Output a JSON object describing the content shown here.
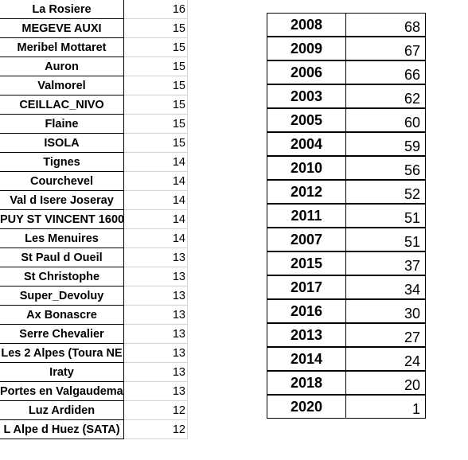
{
  "left_table": {
    "rows": [
      {
        "name": "La Rosiere",
        "value": "16"
      },
      {
        "name": "MEGEVE AUXI",
        "value": "15"
      },
      {
        "name": "Meribel Mottaret",
        "value": "15"
      },
      {
        "name": "Auron",
        "value": "15"
      },
      {
        "name": "Valmorel",
        "value": "15"
      },
      {
        "name": "CEILLAC_NIVO",
        "value": "15"
      },
      {
        "name": "Flaine",
        "value": "15"
      },
      {
        "name": "ISOLA",
        "value": "15"
      },
      {
        "name": "Tignes",
        "value": "14"
      },
      {
        "name": "Courchevel",
        "value": "14"
      },
      {
        "name": "Val d Isere Joseray",
        "value": "14"
      },
      {
        "name": "PUY ST VINCENT 1600",
        "value": "14"
      },
      {
        "name": "Les Menuires",
        "value": "14"
      },
      {
        "name": "St Paul d Oueil",
        "value": "13"
      },
      {
        "name": "St Christophe",
        "value": "13"
      },
      {
        "name": "Super_Devoluy",
        "value": "13"
      },
      {
        "name": "Ax Bonascre",
        "value": "13"
      },
      {
        "name": "Serre Chevalier",
        "value": "13"
      },
      {
        "name": "Les 2 Alpes (Toura NE",
        "value": "13"
      },
      {
        "name": "Iraty",
        "value": "13"
      },
      {
        "name": "Portes en Valgaudemar",
        "value": "13"
      },
      {
        "name": "Luz Ardiden",
        "value": "12"
      },
      {
        "name": "L Alpe d Huez (SATA)",
        "value": "12"
      }
    ]
  },
  "right_table": {
    "rows": [
      {
        "year": "2008",
        "value": "68"
      },
      {
        "year": "2009",
        "value": "67"
      },
      {
        "year": "2006",
        "value": "66"
      },
      {
        "year": "2003",
        "value": "62"
      },
      {
        "year": "2005",
        "value": "60"
      },
      {
        "year": "2004",
        "value": "59"
      },
      {
        "year": "2010",
        "value": "56"
      },
      {
        "year": "2012",
        "value": "52"
      },
      {
        "year": "2011",
        "value": "51"
      },
      {
        "year": "2007",
        "value": "51"
      },
      {
        "year": "2015",
        "value": "37"
      },
      {
        "year": "2017",
        "value": "34"
      },
      {
        "year": "2016",
        "value": "30"
      },
      {
        "year": "2013",
        "value": "27"
      },
      {
        "year": "2014",
        "value": "24"
      },
      {
        "year": "2018",
        "value": "20"
      },
      {
        "year": "2020",
        "value": "1"
      }
    ]
  }
}
